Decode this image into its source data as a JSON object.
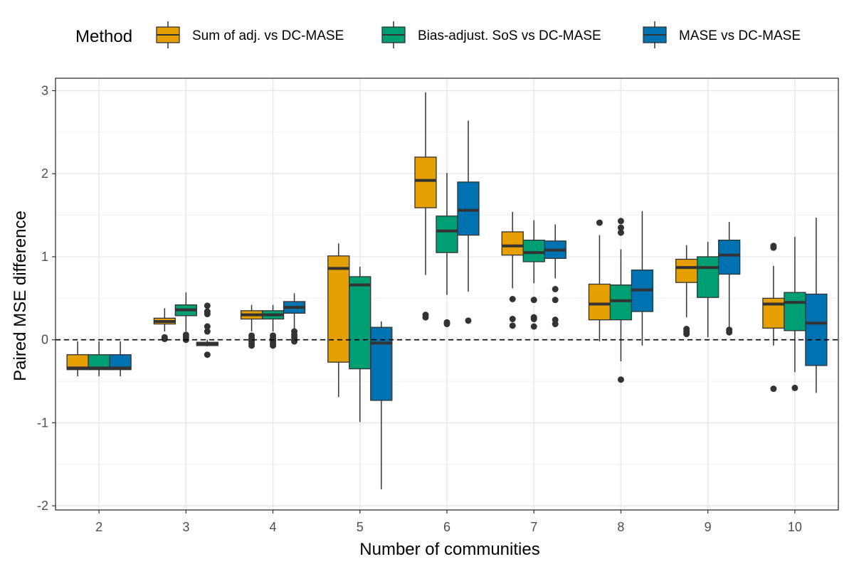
{
  "chart_data": {
    "type": "box",
    "title": "",
    "xlabel": "Number of communities",
    "ylabel": "Paired MSE difference",
    "categories": [
      "2",
      "3",
      "4",
      "5",
      "6",
      "7",
      "8",
      "9",
      "10"
    ],
    "ylim": [
      -2.05,
      3.15
    ],
    "y_ticks": [
      "-2",
      "-1",
      "0",
      "1",
      "2",
      "3"
    ],
    "y_tick_values": [
      -2,
      -1,
      0,
      1,
      2,
      3
    ],
    "reference_line": 0,
    "grid": true,
    "legend": {
      "title": "Method",
      "position": "top"
    },
    "series": [
      {
        "name": "Sum of adj. vs DC-MASE",
        "color": "#E69F00",
        "boxes": [
          {
            "q1": -0.36,
            "median": -0.34,
            "q3": -0.18,
            "lo": -0.44,
            "hi": -0.02,
            "outliers": []
          },
          {
            "q1": 0.19,
            "median": 0.22,
            "q3": 0.26,
            "lo": 0.1,
            "hi": 0.38,
            "outliers": [
              0.01,
              0.03
            ]
          },
          {
            "q1": 0.25,
            "median": 0.3,
            "q3": 0.35,
            "lo": 0.1,
            "hi": 0.42,
            "outliers": [
              -0.07,
              -0.05,
              -0.02,
              0.0,
              0.02,
              0.05
            ]
          },
          {
            "q1": -0.27,
            "median": 0.86,
            "q3": 1.01,
            "lo": -0.69,
            "hi": 1.16,
            "outliers": []
          },
          {
            "q1": 1.59,
            "median": 1.92,
            "q3": 2.2,
            "lo": 0.78,
            "hi": 2.98,
            "outliers": [
              0.27,
              0.3
            ]
          },
          {
            "q1": 1.02,
            "median": 1.13,
            "q3": 1.3,
            "lo": 0.62,
            "hi": 1.54,
            "outliers": [
              0.17,
              0.25,
              0.49
            ]
          },
          {
            "q1": 0.24,
            "median": 0.43,
            "q3": 0.67,
            "lo": -0.02,
            "hi": 1.26,
            "outliers": [
              1.41
            ]
          },
          {
            "q1": 0.69,
            "median": 0.87,
            "q3": 0.97,
            "lo": 0.27,
            "hi": 1.14,
            "outliers": [
              0.07,
              0.1,
              0.13
            ]
          },
          {
            "q1": 0.14,
            "median": 0.43,
            "q3": 0.5,
            "lo": -0.07,
            "hi": 0.89,
            "outliers": [
              -0.59,
              1.11,
              1.13
            ]
          }
        ]
      },
      {
        "name": "Bias-adjust. SoS vs DC-MASE",
        "color": "#009E73",
        "boxes": [
          {
            "q1": -0.36,
            "median": -0.34,
            "q3": -0.18,
            "lo": -0.44,
            "hi": -0.02,
            "outliers": []
          },
          {
            "q1": 0.29,
            "median": 0.36,
            "q3": 0.42,
            "lo": 0.1,
            "hi": 0.57,
            "outliers": [
              0.0,
              0.03,
              0.06
            ]
          },
          {
            "q1": 0.25,
            "median": 0.3,
            "q3": 0.35,
            "lo": 0.1,
            "hi": 0.42,
            "outliers": [
              -0.07,
              -0.05,
              -0.02,
              0.0,
              0.02,
              0.05
            ]
          },
          {
            "q1": -0.35,
            "median": 0.66,
            "q3": 0.76,
            "lo": -0.99,
            "hi": 0.88,
            "outliers": []
          },
          {
            "q1": 1.05,
            "median": 1.31,
            "q3": 1.49,
            "lo": 0.54,
            "hi": 2.01,
            "outliers": [
              0.19,
              0.21
            ]
          },
          {
            "q1": 0.94,
            "median": 1.05,
            "q3": 1.2,
            "lo": 0.68,
            "hi": 1.44,
            "outliers": [
              0.16,
              0.25,
              0.27,
              0.48
            ]
          },
          {
            "q1": 0.24,
            "median": 0.47,
            "q3": 0.66,
            "lo": -0.26,
            "hi": 1.09,
            "outliers": [
              -0.48,
              1.29,
              1.35,
              1.43
            ]
          },
          {
            "q1": 0.51,
            "median": 0.87,
            "q3": 1.0,
            "lo": 0.03,
            "hi": 1.18,
            "outliers": []
          },
          {
            "q1": 0.11,
            "median": 0.45,
            "q3": 0.57,
            "lo": -0.39,
            "hi": 1.24,
            "outliers": [
              -0.58
            ]
          }
        ]
      },
      {
        "name": "MASE vs DC-MASE",
        "color": "#0072B2",
        "boxes": [
          {
            "q1": -0.36,
            "median": -0.34,
            "q3": -0.18,
            "lo": -0.44,
            "hi": -0.02,
            "outliers": []
          },
          {
            "q1": -0.07,
            "median": -0.05,
            "q3": -0.03,
            "lo": -0.08,
            "hi": 0.0,
            "outliers": [
              -0.18,
              0.1,
              0.16,
              0.31,
              0.34,
              0.41
            ]
          },
          {
            "q1": 0.32,
            "median": 0.39,
            "q3": 0.46,
            "lo": 0.1,
            "hi": 0.56,
            "outliers": [
              -0.02,
              0.0,
              0.03,
              0.06,
              0.1
            ]
          },
          {
            "q1": -0.73,
            "median": -0.04,
            "q3": 0.15,
            "lo": -1.8,
            "hi": 0.22,
            "outliers": []
          },
          {
            "q1": 1.26,
            "median": 1.56,
            "q3": 1.9,
            "lo": 0.58,
            "hi": 2.64,
            "outliers": [
              0.23
            ]
          },
          {
            "q1": 0.98,
            "median": 1.08,
            "q3": 1.19,
            "lo": 0.74,
            "hi": 1.39,
            "outliers": [
              0.19,
              0.24,
              0.48,
              0.61
            ]
          },
          {
            "q1": 0.34,
            "median": 0.6,
            "q3": 0.84,
            "lo": -0.07,
            "hi": 1.55,
            "outliers": []
          },
          {
            "q1": 0.79,
            "median": 1.02,
            "q3": 1.2,
            "lo": 0.15,
            "hi": 1.42,
            "outliers": [
              0.09,
              0.12
            ]
          },
          {
            "q1": -0.31,
            "median": 0.2,
            "q3": 0.55,
            "lo": -0.64,
            "hi": 1.47,
            "outliers": []
          }
        ]
      }
    ]
  }
}
